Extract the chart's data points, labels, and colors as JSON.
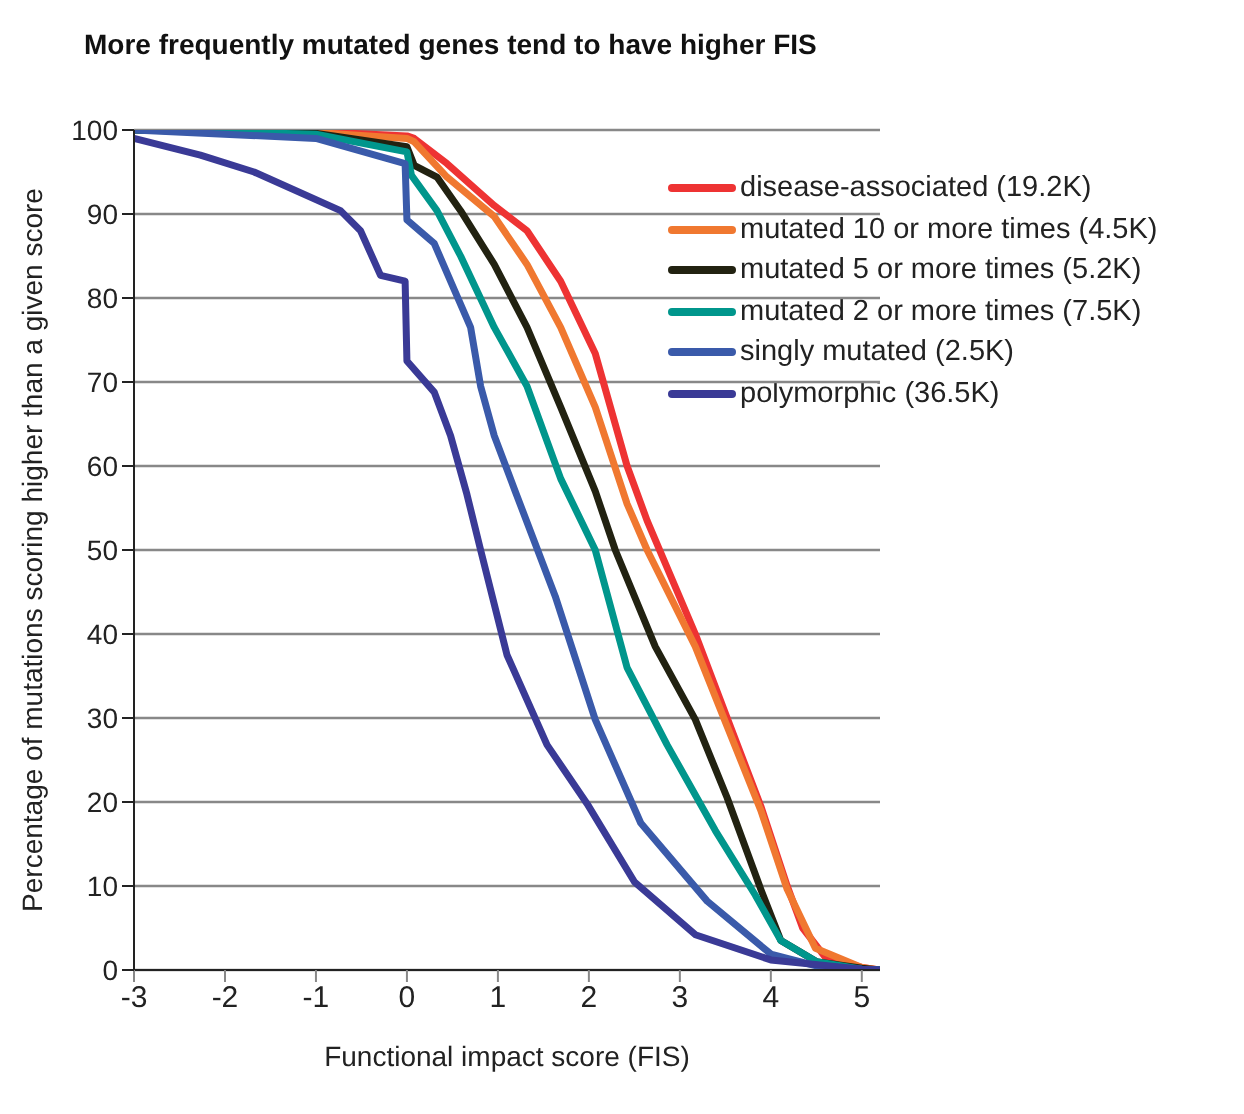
{
  "chart_data": {
    "type": "line",
    "title": "More frequently mutated genes tend to have higher FIS",
    "xlabel": "Functional impact score (FIS)",
    "ylabel": "Percentage of mutations scoring higher than a given score",
    "xlim": [
      -3,
      5.2
    ],
    "ylim": [
      0,
      100
    ],
    "xticks": [
      -3,
      -2,
      -1,
      0,
      1,
      2,
      3,
      4,
      5
    ],
    "yticks": [
      0,
      10,
      20,
      30,
      40,
      50,
      60,
      70,
      80,
      90,
      100
    ],
    "grid": "y",
    "legend": "top right",
    "marker": "none",
    "line_style": "solid",
    "series": [
      {
        "name": "disease-associated (19.2K)",
        "color": "#ee3333",
        "x": [
          -3,
          -1,
          0,
          0.08,
          0.44,
          0.96,
          1.32,
          1.69,
          2.07,
          2.42,
          2.64,
          3.17,
          3.52,
          3.89,
          4.18,
          4.35,
          4.6,
          5,
          5.2
        ],
        "values": [
          100,
          99.8,
          99.3,
          99,
          96,
          91,
          88,
          82,
          73.4,
          60,
          53.5,
          40,
          30,
          19.5,
          10,
          5,
          1.5,
          0.3,
          0
        ]
      },
      {
        "name": "mutated 10 or more times (4.5K)",
        "color": "#f07830",
        "x": [
          -3,
          -1,
          0,
          0.08,
          0.44,
          0.96,
          1.32,
          1.69,
          2.07,
          2.42,
          2.64,
          3.17,
          3.52,
          3.89,
          4.18,
          4.49,
          5,
          5.2
        ],
        "values": [
          100,
          99.7,
          99,
          98.6,
          94.4,
          89.7,
          84,
          76.5,
          67,
          55.5,
          50,
          38.5,
          29,
          19,
          9.6,
          2.6,
          0.3,
          0
        ]
      },
      {
        "name": "mutated 5 or more times (5.2K)",
        "color": "#222211",
        "x": [
          -3,
          -1,
          0,
          0.08,
          0.33,
          0.59,
          0.96,
          1.32,
          1.69,
          2.07,
          2.29,
          2.73,
          3.17,
          3.52,
          3.89,
          4.11,
          4.5,
          5,
          5.2
        ],
        "values": [
          100,
          99.6,
          98,
          95.8,
          94.4,
          90.4,
          84,
          76.5,
          67,
          57,
          50,
          38.5,
          29.8,
          20.5,
          9.6,
          3.5,
          1,
          0.2,
          0
        ]
      },
      {
        "name": "mutated 2 or more times (7.5K)",
        "color": "#00968c",
        "x": [
          -3,
          -1,
          0,
          0.05,
          0.33,
          0.59,
          0.96,
          1.32,
          1.69,
          2.07,
          2.42,
          2.86,
          3.39,
          3.83,
          4.11,
          4.5,
          5,
          5.2
        ],
        "values": [
          100,
          99.5,
          97.4,
          94.6,
          90.4,
          85,
          76.5,
          69.5,
          58.5,
          50,
          36,
          26.8,
          16.6,
          8.9,
          3.5,
          1,
          0.1,
          0
        ]
      },
      {
        "name": "singly mutated (2.5K)",
        "color": "#3a5aaa",
        "x": [
          -3,
          -1,
          -0.02,
          0,
          0.3,
          0.52,
          0.7,
          0.81,
          0.96,
          1.19,
          1.63,
          2.07,
          2.57,
          3.3,
          4,
          4.5,
          5,
          5.2
        ],
        "values": [
          100,
          99,
          96,
          89.3,
          86.5,
          81,
          76.5,
          69.5,
          63.6,
          57,
          44.5,
          29.8,
          17.5,
          8.2,
          1.9,
          0.5,
          0.1,
          0
        ]
      },
      {
        "name": "polymorphic (36.5K)",
        "color": "#3a3a96",
        "x": [
          -3,
          -2.27,
          -1.68,
          -0.73,
          -0.51,
          -0.29,
          -0.02,
          0,
          0.3,
          0.48,
          0.66,
          0.81,
          1.1,
          1.54,
          1.98,
          2.5,
          3.17,
          4,
          5,
          5.2
        ],
        "values": [
          99,
          97,
          95,
          90.4,
          88,
          82.7,
          82,
          72.5,
          68.8,
          63.6,
          56.6,
          50,
          37.5,
          26.8,
          19.8,
          10.5,
          4.2,
          1.2,
          0.1,
          0
        ]
      }
    ]
  }
}
